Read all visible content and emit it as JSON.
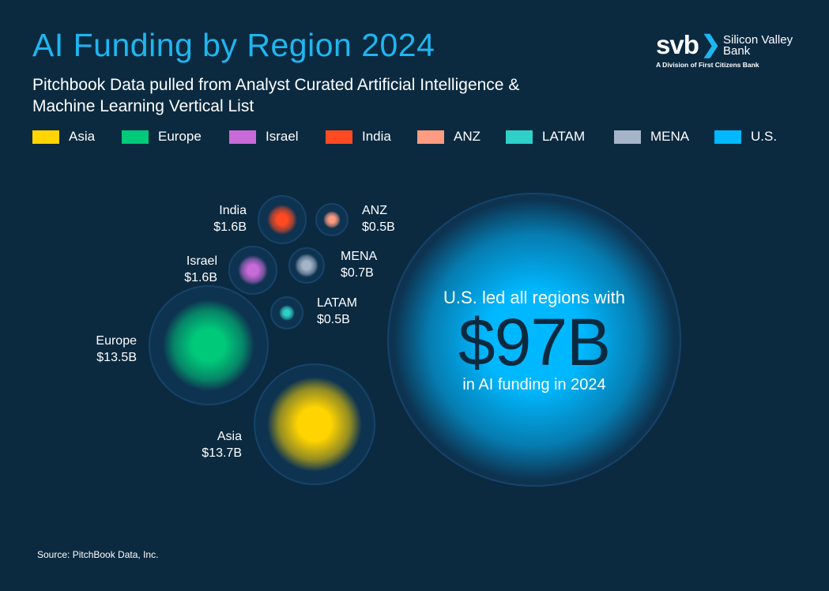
{
  "header": {
    "title": "AI Funding by Region 2024",
    "subtitle": "Pitchbook Data pulled from Analyst Curated Artificial Intelligence & Machine Learning Vertical List"
  },
  "logo": {
    "mark": "svb",
    "name_line1": "Silicon Valley",
    "name_line2": "Bank",
    "division": "A Division of First Citizens Bank"
  },
  "chart_data": {
    "type": "bubble",
    "title": "AI Funding by Region 2024",
    "legend_position": "top",
    "series": [
      {
        "name": "Asia",
        "value_label": "$13.7B",
        "value": 13.7,
        "color": "#ffd400"
      },
      {
        "name": "Europe",
        "value_label": "$13.5B",
        "value": 13.5,
        "color": "#00c97a"
      },
      {
        "name": "Israel",
        "value_label": "$1.6B",
        "value": 1.6,
        "color": "#c86ad8"
      },
      {
        "name": "India",
        "value_label": "$1.6B",
        "value": 1.6,
        "color": "#ff4a22"
      },
      {
        "name": "ANZ",
        "value_label": "$0.5B",
        "value": 0.5,
        "color": "#ff9b80"
      },
      {
        "name": "LATAM",
        "value_label": "$0.5B",
        "value": 0.5,
        "color": "#2fd0c8"
      },
      {
        "name": "MENA",
        "value_label": "$0.7B",
        "value": 0.7,
        "color": "#a5b4c8"
      },
      {
        "name": "U.S.",
        "value_label": "$97B",
        "value": 97,
        "color": "#00b8ff"
      }
    ],
    "annotation": {
      "line1": "U.S. led all regions with",
      "big": "$97B",
      "line3": "in AI funding in 2024"
    }
  },
  "source": "Source: PitchBook Data, Inc."
}
